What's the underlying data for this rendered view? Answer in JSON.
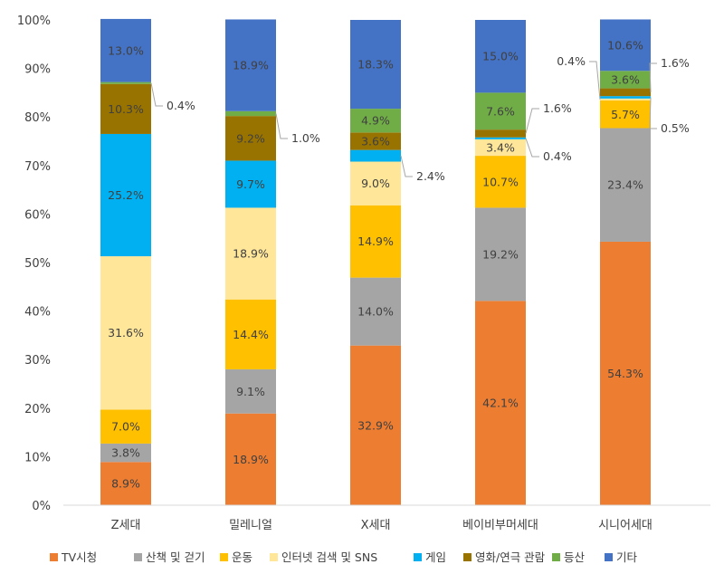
{
  "chart_data": {
    "type": "bar",
    "stacked": true,
    "percent": true,
    "categories": [
      "Z세대",
      "밀레니얼",
      "X세대",
      "베이비부머세대",
      "시니어세대"
    ],
    "yticks": [
      "0%",
      "10%",
      "20%",
      "30%",
      "40%",
      "50%",
      "60%",
      "70%",
      "80%",
      "90%",
      "100%"
    ],
    "ylim": [
      0,
      100
    ],
    "grid": false,
    "legend": "bottom",
    "series": [
      {
        "name": "TV시청",
        "color": "#ED7D31",
        "values": [
          8.9,
          18.9,
          32.9,
          42.1,
          54.3
        ],
        "labels": [
          "8.9%",
          "18.9%",
          "32.9%",
          "42.1%",
          "54.3%"
        ]
      },
      {
        "name": "산책 및 걷기",
        "color": "#A5A5A5",
        "values": [
          3.8,
          9.1,
          14.0,
          19.2,
          23.4
        ],
        "labels": [
          "3.8%",
          "9.1%",
          "14.0%",
          "19.2%",
          "23.4%"
        ]
      },
      {
        "name": "운동",
        "color": "#FFC000",
        "values": [
          7.0,
          14.4,
          14.9,
          10.7,
          5.7
        ],
        "labels": [
          "7.0%",
          "14.4%",
          "14.9%",
          "10.7%",
          "5.7%"
        ]
      },
      {
        "name": "인터넷 검색 및 SNS",
        "color": "#FFE699",
        "values": [
          31.6,
          18.9,
          9.0,
          3.4,
          0.4
        ],
        "labels": [
          "31.6%",
          "18.9%",
          "9.0%",
          "3.4%",
          "0.4%"
        ]
      },
      {
        "name": "게임",
        "color": "#00B0F0",
        "values": [
          25.2,
          9.7,
          2.4,
          0.4,
          0.5
        ],
        "labels": [
          "25.2%",
          "9.7%",
          "2.4%",
          "0.4%",
          "0.5%"
        ]
      },
      {
        "name": "영화/연극 관람",
        "color": "#997300",
        "values": [
          10.3,
          9.2,
          3.6,
          1.6,
          1.6
        ],
        "labels": [
          "10.3%",
          "9.2%",
          "3.6%",
          "1.6%",
          "1.6%"
        ]
      },
      {
        "name": "등산",
        "color": "#70AD47",
        "values": [
          0.4,
          1.0,
          4.9,
          7.6,
          3.6
        ],
        "labels": [
          "0.4%",
          "1.0%",
          "4.9%",
          "7.6%",
          "3.6%"
        ]
      },
      {
        "name": "기타",
        "color": "#4472C4",
        "values": [
          13.0,
          18.9,
          18.3,
          15.0,
          10.6
        ],
        "labels": [
          "13.0%",
          "18.9%",
          "18.3%",
          "15.0%",
          "10.6%"
        ]
      }
    ]
  }
}
